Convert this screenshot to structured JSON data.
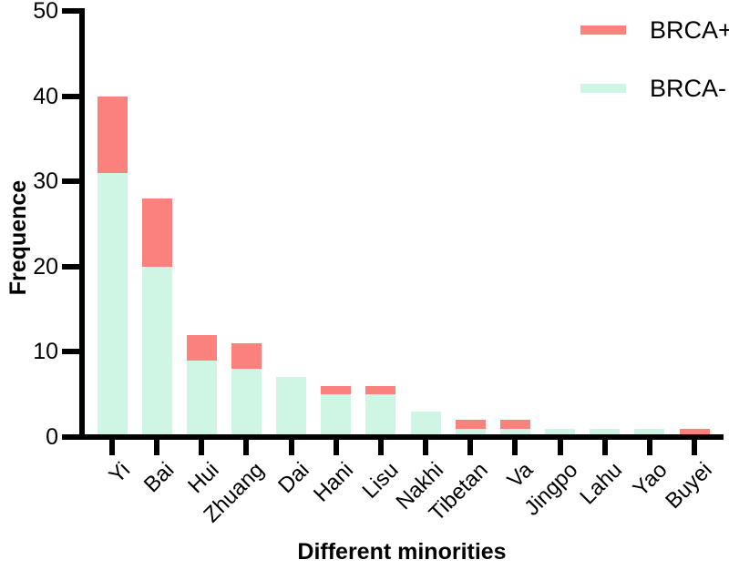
{
  "legend": {
    "items": [
      {
        "label": "BRCA+",
        "color": "#FB817D"
      },
      {
        "label": "BRCA-",
        "color": "#CFF5E4"
      }
    ]
  },
  "chart_data": {
    "type": "bar",
    "stacked": true,
    "title": "",
    "xlabel": "Different minorities",
    "ylabel": "Frequence",
    "categories": [
      "Yi",
      "Bai",
      "Hui",
      "Zhuang",
      "Dai",
      "Hani",
      "Lisu",
      "Nakhi",
      "Tibetan",
      "Va",
      "Jingpo",
      "Lahu",
      "Yao",
      "Buyei"
    ],
    "series": [
      {
        "name": "BRCA-",
        "color": "#CFF5E4",
        "values": [
          31,
          20,
          9,
          8,
          7,
          5,
          5,
          3,
          1,
          1,
          1,
          1,
          1,
          0
        ]
      },
      {
        "name": "BRCA+",
        "color": "#FB817D",
        "values": [
          9,
          8,
          3,
          3,
          0,
          1,
          1,
          0,
          1,
          1,
          0,
          0,
          0,
          1
        ]
      }
    ],
    "totals": [
      40,
      28,
      12,
      11,
      7,
      6,
      6,
      3,
      2,
      2,
      1,
      1,
      1,
      1
    ],
    "ylim": [
      0,
      50
    ],
    "yticks": [
      0,
      10,
      20,
      30,
      40,
      50
    ],
    "grid": false,
    "legend_position": "top-right"
  }
}
